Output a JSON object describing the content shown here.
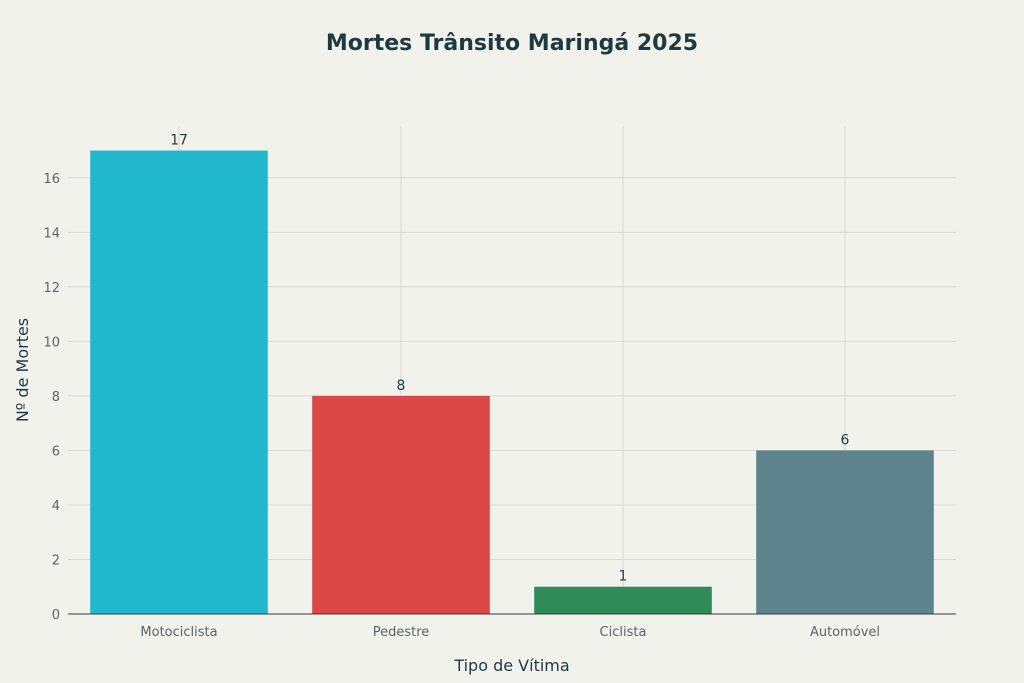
{
  "chart_data": {
    "type": "bar",
    "title": "Mortes Trânsito Maringá 2025",
    "xlabel": "Tipo de Vítima",
    "ylabel": "Nº de Mortes",
    "categories": [
      "Motociclista",
      "Pedestre",
      "Ciclista",
      "Automóvel"
    ],
    "values": [
      17,
      8,
      1,
      6
    ],
    "colors": [
      "#21b8cd",
      "#db4647",
      "#2e8b57",
      "#5e838c"
    ],
    "ylim": [
      0,
      17.9
    ],
    "yticks": [
      0,
      2,
      4,
      6,
      8,
      10,
      12,
      14,
      16
    ],
    "grid": true,
    "legend": "none"
  }
}
